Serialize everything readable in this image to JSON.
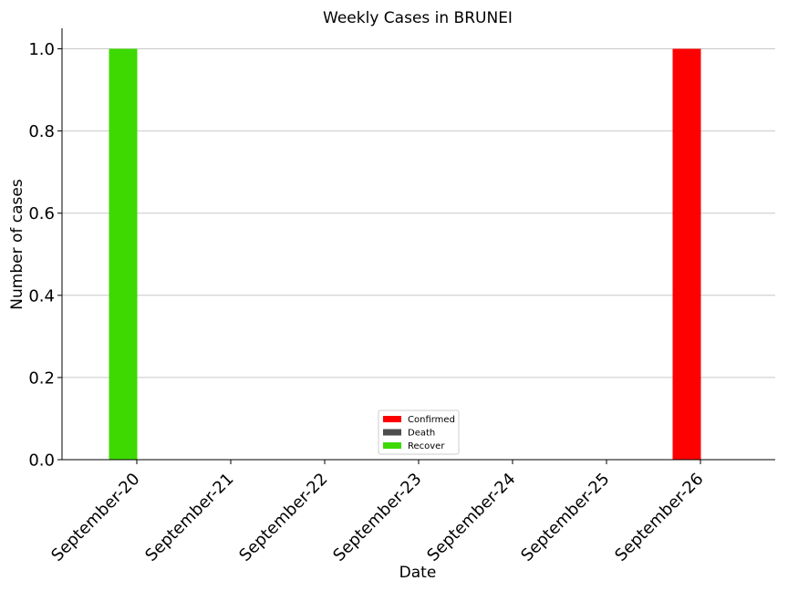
{
  "chart_data": {
    "type": "bar",
    "title": "Weekly Cases in BRUNEI",
    "xlabel": "Date",
    "ylabel": "Number of cases",
    "categories": [
      "September-20",
      "September-21",
      "September-22",
      "September-23",
      "September-24",
      "September-25",
      "September-26"
    ],
    "series": [
      {
        "name": "Confirmed",
        "color": "#ff0000",
        "values": [
          0,
          0,
          0,
          0,
          0,
          0,
          1
        ]
      },
      {
        "name": "Death",
        "color": "#4d4d4d",
        "values": [
          0,
          0,
          0,
          0,
          0,
          0,
          0
        ]
      },
      {
        "name": "Recover",
        "color": "#3dd900",
        "values": [
          1,
          0,
          0,
          0,
          0,
          0,
          0
        ]
      }
    ],
    "ylim": [
      0,
      1.05
    ],
    "yticks": [
      "0.0",
      "0.2",
      "0.4",
      "0.6",
      "0.8",
      "1.0"
    ],
    "grid": "horizontal",
    "legend_position": "bottom-center"
  }
}
